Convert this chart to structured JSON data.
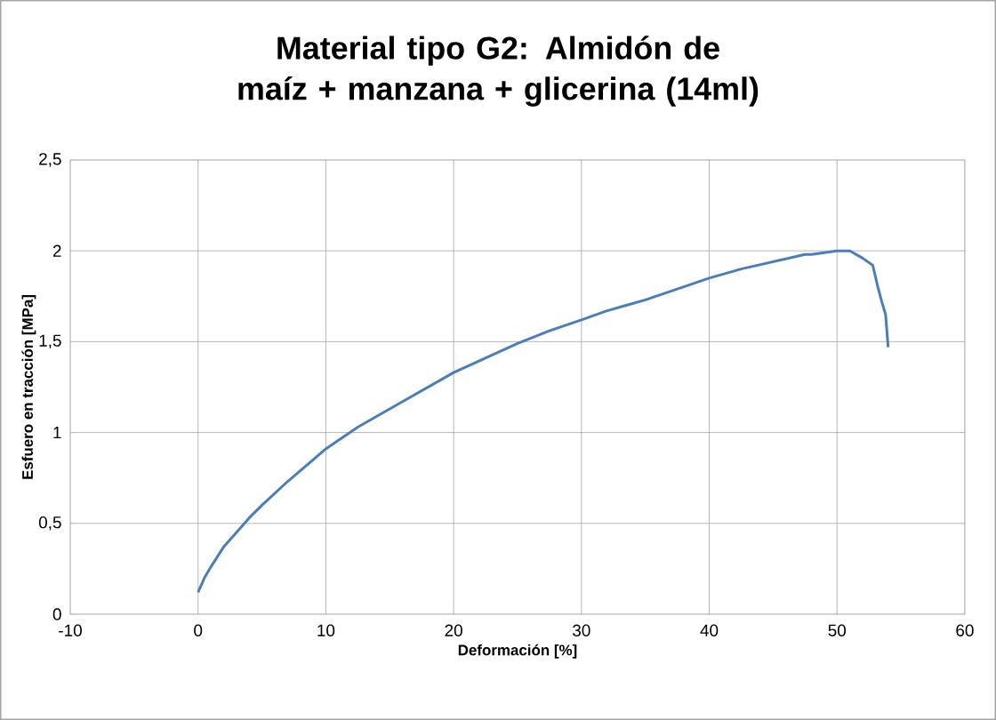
{
  "chart_data": {
    "type": "line",
    "title": "Material tipo G2: Almidón de maíz + manzana + glicerina (14ml)",
    "xlabel": "Deformación [%]",
    "ylabel": "Esfuero en tracción [MPa]",
    "xlim": [
      -10,
      60
    ],
    "ylim": [
      0,
      2.5
    ],
    "xticks": [
      -10,
      0,
      10,
      20,
      30,
      40,
      50,
      60
    ],
    "yticks": [
      {
        "value": 0,
        "label": "0"
      },
      {
        "value": 0.5,
        "label": "0,5"
      },
      {
        "value": 1,
        "label": "1"
      },
      {
        "value": 1.5,
        "label": "1,5"
      },
      {
        "value": 2,
        "label": "2"
      },
      {
        "value": 2.5,
        "label": "2,5"
      }
    ],
    "grid": true,
    "marker": "none",
    "line_style": "solid",
    "series": [
      {
        "color": "#4a7ebb",
        "x": [
          0,
          0.5,
          1,
          2,
          3,
          4,
          5,
          7,
          10,
          12.5,
          15,
          17.5,
          20,
          22.5,
          25,
          27.5,
          30,
          32,
          32.5,
          33,
          34,
          35,
          37.5,
          40,
          42.5,
          45,
          47.5,
          48,
          50,
          51,
          52,
          52.8,
          53.2,
          53.5,
          53.8,
          54
        ],
        "values": [
          0.12,
          0.2,
          0.26,
          0.37,
          0.45,
          0.53,
          0.6,
          0.73,
          0.91,
          1.03,
          1.13,
          1.23,
          1.33,
          1.41,
          1.49,
          1.56,
          1.62,
          1.67,
          1.68,
          1.69,
          1.71,
          1.73,
          1.79,
          1.85,
          1.9,
          1.94,
          1.98,
          1.98,
          2.0,
          2.0,
          1.96,
          1.92,
          1.8,
          1.72,
          1.65,
          1.47
        ]
      }
    ]
  }
}
